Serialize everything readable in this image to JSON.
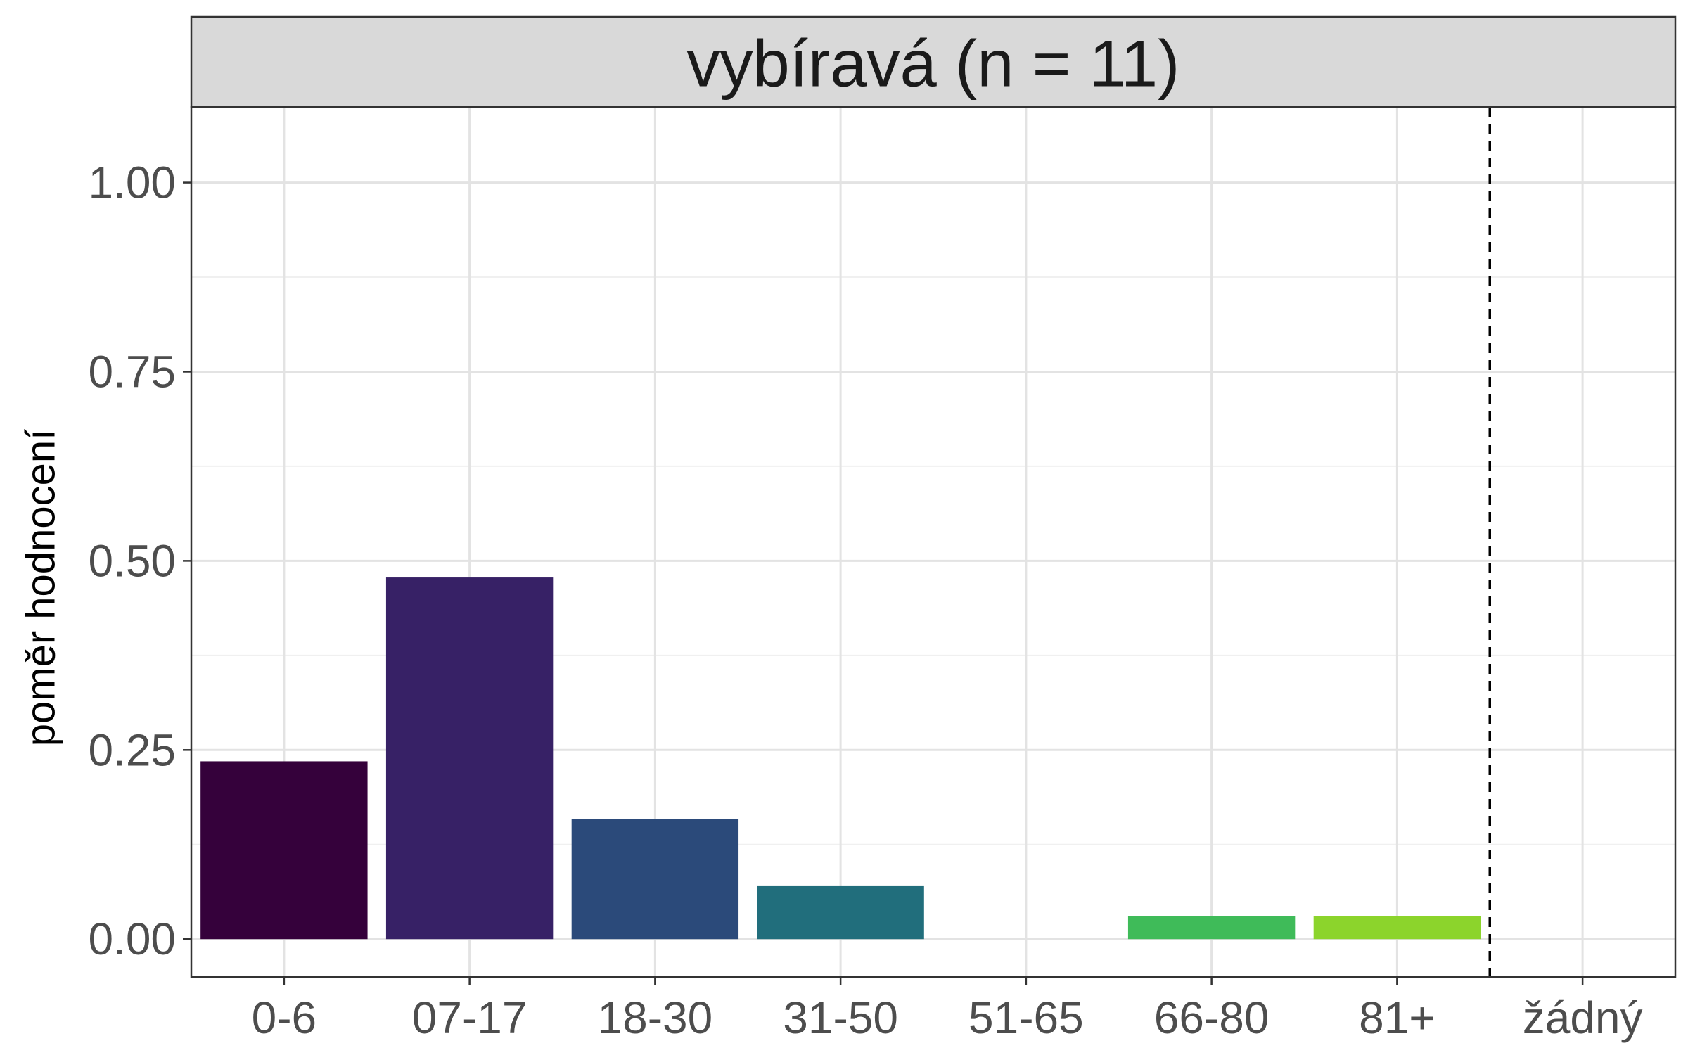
{
  "chart_data": {
    "type": "bar",
    "panel_title": "vybíravá (n = 11)",
    "title": "",
    "xlabel": "",
    "ylabel": "poměr hodnocení",
    "categories": [
      "0-6",
      "07-17",
      "18-30",
      "31-50",
      "51-65",
      "66-80",
      "81+",
      "žádný"
    ],
    "values": [
      0.235,
      0.478,
      0.159,
      0.07,
      0,
      0.03,
      0.03,
      0
    ],
    "colors": [
      "#35013b",
      "#372166",
      "#2b4a7a",
      "#216e7c",
      "#1f9e89",
      "#3fbb59",
      "#8cd42c",
      "#fde725"
    ],
    "ylim": [
      -0.05,
      1.1
    ],
    "yticks": [
      0,
      0.25,
      0.5,
      0.75,
      1
    ],
    "ytick_labels": [
      "0.00",
      "0.25",
      "0.50",
      "0.75",
      "1.00"
    ],
    "reference_line": {
      "between": [
        "81+",
        "žádný"
      ],
      "style": "dashed"
    },
    "grid": true,
    "legend": "none"
  }
}
